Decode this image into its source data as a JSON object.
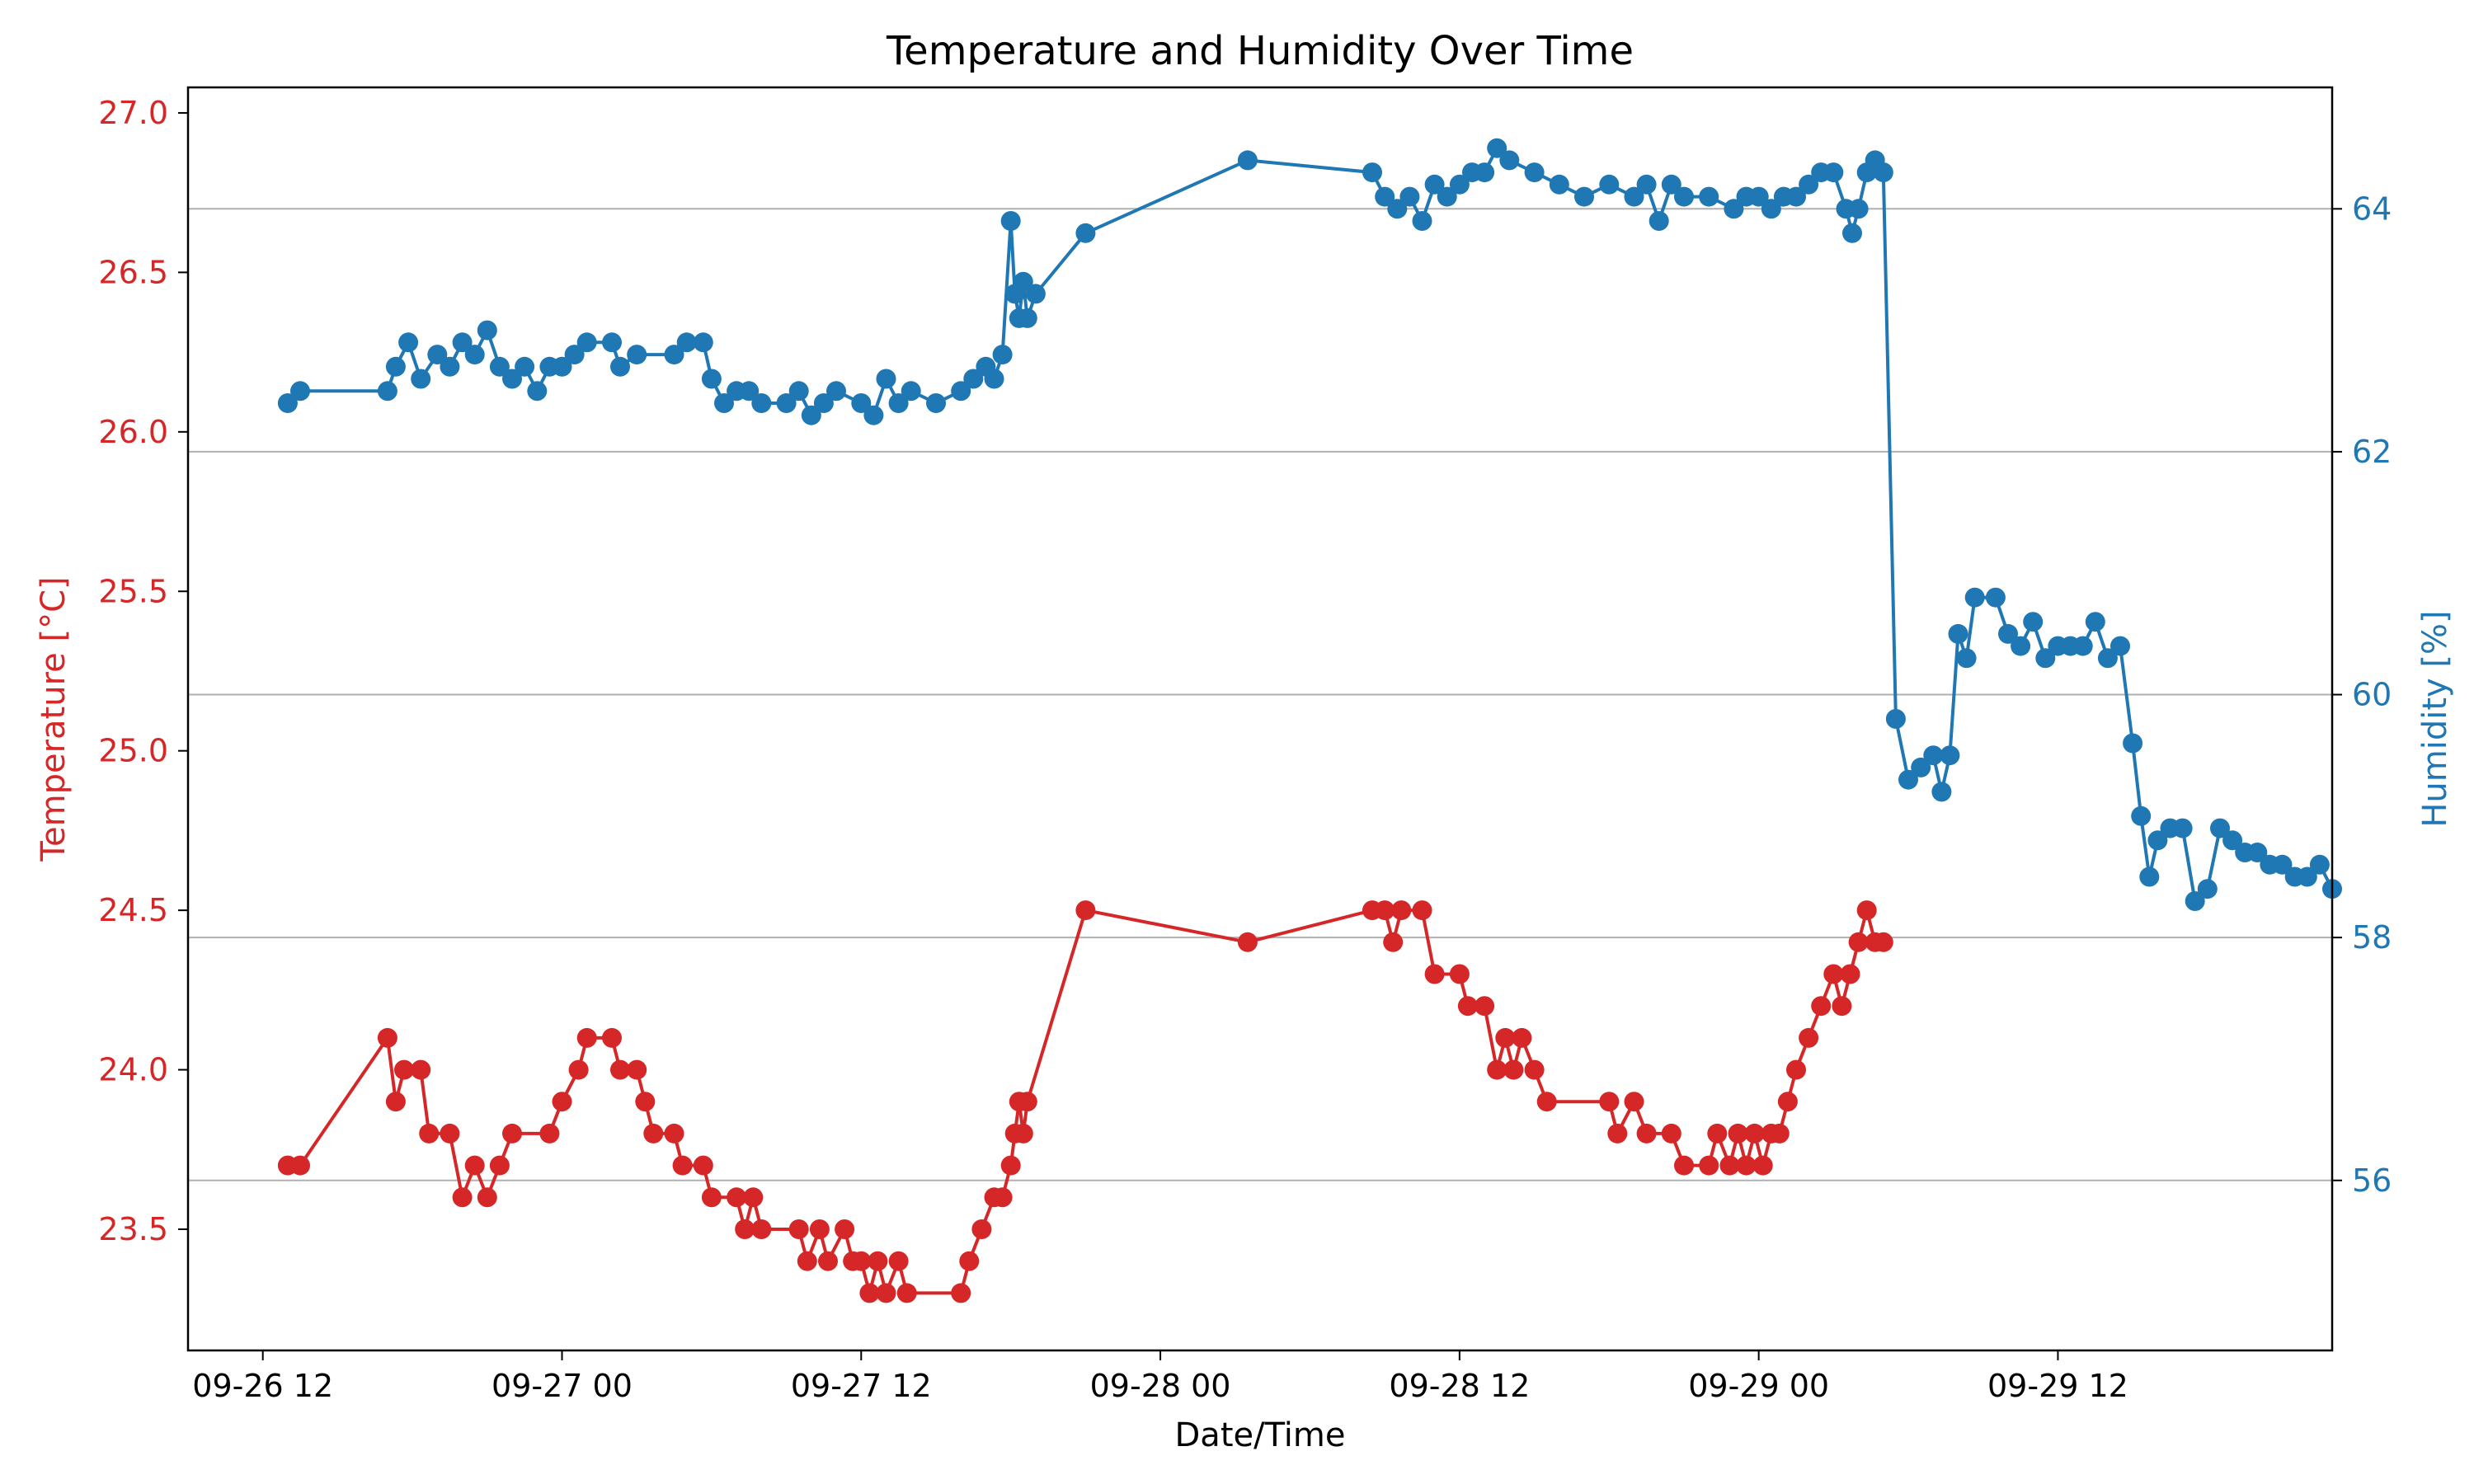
{
  "chart_data": {
    "type": "line",
    "title": "Temperature and Humidity Over Time",
    "xlabel": "Date/Time",
    "x_ticks": [
      "09-26 12",
      "09-27 00",
      "09-27 12",
      "09-28 00",
      "09-28 12",
      "09-29 00",
      "09-29 12"
    ],
    "xlim": [
      "09-26 09",
      "09-29 23"
    ],
    "ylim_left": [
      23.12,
      27.08
    ],
    "ylim_right": [
      54.6,
      65.0
    ],
    "y_left_ticks": [
      "23.5",
      "24.0",
      "24.5",
      "25.0",
      "25.5",
      "26.0",
      "26.5",
      "27.0"
    ],
    "y_right_ticks": [
      "56",
      "58",
      "60",
      "62",
      "64"
    ],
    "grid": "horizontal, right axis",
    "colors": {
      "temperature": "#d62728",
      "humidity": "#1f77b4",
      "grid": "#b0b0b0"
    },
    "series": [
      {
        "name": "Temperature [°C]",
        "axis": "left",
        "points": [
          [
            "09-26 13:00",
            23.7
          ],
          [
            "09-26 13:30",
            23.7
          ],
          [
            "09-26 17:00",
            24.1
          ],
          [
            "09-26 17:20",
            23.9
          ],
          [
            "09-26 17:40",
            24.0
          ],
          [
            "09-26 18:20",
            24.0
          ],
          [
            "09-26 18:40",
            23.8
          ],
          [
            "09-26 19:30",
            23.8
          ],
          [
            "09-26 20:00",
            23.6
          ],
          [
            "09-26 20:30",
            23.7
          ],
          [
            "09-26 21:00",
            23.6
          ],
          [
            "09-26 21:30",
            23.7
          ],
          [
            "09-26 22:00",
            23.8
          ],
          [
            "09-26 23:30",
            23.8
          ],
          [
            "09-27 00:00",
            23.9
          ],
          [
            "09-27 00:40",
            24.0
          ],
          [
            "09-27 01:00",
            24.1
          ],
          [
            "09-27 02:00",
            24.1
          ],
          [
            "09-27 02:20",
            24.0
          ],
          [
            "09-27 03:00",
            24.0
          ],
          [
            "09-27 03:20",
            23.9
          ],
          [
            "09-27 03:40",
            23.8
          ],
          [
            "09-27 04:30",
            23.8
          ],
          [
            "09-27 04:50",
            23.7
          ],
          [
            "09-27 05:40",
            23.7
          ],
          [
            "09-27 06:00",
            23.6
          ],
          [
            "09-27 07:00",
            23.6
          ],
          [
            "09-27 07:20",
            23.5
          ],
          [
            "09-27 07:40",
            23.6
          ],
          [
            "09-27 08:00",
            23.5
          ],
          [
            "09-27 09:30",
            23.5
          ],
          [
            "09-27 09:50",
            23.4
          ],
          [
            "09-27 10:20",
            23.5
          ],
          [
            "09-27 10:40",
            23.4
          ],
          [
            "09-27 11:20",
            23.5
          ],
          [
            "09-27 11:40",
            23.4
          ],
          [
            "09-27 12:00",
            23.4
          ],
          [
            "09-27 12:20",
            23.3
          ],
          [
            "09-27 12:40",
            23.4
          ],
          [
            "09-27 13:00",
            23.3
          ],
          [
            "09-27 13:30",
            23.4
          ],
          [
            "09-27 13:50",
            23.3
          ],
          [
            "09-27 16:00",
            23.3
          ],
          [
            "09-27 16:20",
            23.4
          ],
          [
            "09-27 16:50",
            23.5
          ],
          [
            "09-27 17:20",
            23.6
          ],
          [
            "09-27 17:40",
            23.6
          ],
          [
            "09-27 18:00",
            23.7
          ],
          [
            "09-27 18:10",
            23.8
          ],
          [
            "09-27 18:20",
            23.9
          ],
          [
            "09-27 18:30",
            23.8
          ],
          [
            "09-27 18:40",
            23.9
          ],
          [
            "09-27 21:00",
            24.5
          ],
          [
            "09-28 03:30",
            24.4
          ],
          [
            "09-28 08:30",
            24.5
          ],
          [
            "09-28 09:00",
            24.5
          ],
          [
            "09-28 09:20",
            24.4
          ],
          [
            "09-28 09:40",
            24.5
          ],
          [
            "09-28 10:30",
            24.5
          ],
          [
            "09-28 11:00",
            24.3
          ],
          [
            "09-28 12:00",
            24.3
          ],
          [
            "09-28 12:20",
            24.2
          ],
          [
            "09-28 13:00",
            24.2
          ],
          [
            "09-28 13:30",
            24.0
          ],
          [
            "09-28 13:50",
            24.1
          ],
          [
            "09-28 14:10",
            24.0
          ],
          [
            "09-28 14:30",
            24.1
          ],
          [
            "09-28 15:00",
            24.0
          ],
          [
            "09-28 15:30",
            23.9
          ],
          [
            "09-28 18:00",
            23.9
          ],
          [
            "09-28 18:20",
            23.8
          ],
          [
            "09-28 19:00",
            23.9
          ],
          [
            "09-28 19:30",
            23.8
          ],
          [
            "09-28 20:30",
            23.8
          ],
          [
            "09-28 21:00",
            23.7
          ],
          [
            "09-28 22:00",
            23.7
          ],
          [
            "09-28 22:20",
            23.8
          ],
          [
            "09-28 22:50",
            23.7
          ],
          [
            "09-28 23:10",
            23.8
          ],
          [
            "09-28 23:30",
            23.7
          ],
          [
            "09-28 23:50",
            23.8
          ],
          [
            "09-29 00:10",
            23.7
          ],
          [
            "09-29 00:30",
            23.8
          ],
          [
            "09-29 00:50",
            23.8
          ],
          [
            "09-29 01:10",
            23.9
          ],
          [
            "09-29 01:30",
            24.0
          ],
          [
            "09-29 02:00",
            24.1
          ],
          [
            "09-29 02:30",
            24.2
          ],
          [
            "09-29 03:00",
            24.3
          ],
          [
            "09-29 03:20",
            24.2
          ],
          [
            "09-29 03:40",
            24.3
          ],
          [
            "09-29 04:00",
            24.4
          ],
          [
            "09-29 04:20",
            24.5
          ],
          [
            "09-29 04:40",
            24.4
          ],
          [
            "09-29 05:00",
            24.4
          ]
        ]
      },
      {
        "name": "Humidity [%]",
        "axis": "right",
        "points": [
          [
            "09-26 13:00",
            62.4
          ],
          [
            "09-26 13:30",
            62.5
          ],
          [
            "09-26 17:00",
            62.5
          ],
          [
            "09-26 17:20",
            62.7
          ],
          [
            "09-26 17:50",
            62.9
          ],
          [
            "09-26 18:20",
            62.6
          ],
          [
            "09-26 19:00",
            62.8
          ],
          [
            "09-26 19:30",
            62.7
          ],
          [
            "09-26 20:00",
            62.9
          ],
          [
            "09-26 20:30",
            62.8
          ],
          [
            "09-26 21:00",
            63.0
          ],
          [
            "09-26 21:30",
            62.7
          ],
          [
            "09-26 22:00",
            62.6
          ],
          [
            "09-26 22:30",
            62.7
          ],
          [
            "09-26 23:00",
            62.5
          ],
          [
            "09-26 23:30",
            62.7
          ],
          [
            "09-27 00:00",
            62.7
          ],
          [
            "09-27 00:30",
            62.8
          ],
          [
            "09-27 01:00",
            62.9
          ],
          [
            "09-27 02:00",
            62.9
          ],
          [
            "09-27 02:20",
            62.7
          ],
          [
            "09-27 03:00",
            62.8
          ],
          [
            "09-27 04:30",
            62.8
          ],
          [
            "09-27 05:00",
            62.9
          ],
          [
            "09-27 05:40",
            62.9
          ],
          [
            "09-27 06:00",
            62.6
          ],
          [
            "09-27 06:30",
            62.4
          ],
          [
            "09-27 07:00",
            62.5
          ],
          [
            "09-27 07:30",
            62.5
          ],
          [
            "09-27 08:00",
            62.4
          ],
          [
            "09-27 09:00",
            62.4
          ],
          [
            "09-27 09:30",
            62.5
          ],
          [
            "09-27 10:00",
            62.3
          ],
          [
            "09-27 10:30",
            62.4
          ],
          [
            "09-27 11:00",
            62.5
          ],
          [
            "09-27 12:00",
            62.4
          ],
          [
            "09-27 12:30",
            62.3
          ],
          [
            "09-27 13:00",
            62.6
          ],
          [
            "09-27 13:30",
            62.4
          ],
          [
            "09-27 14:00",
            62.5
          ],
          [
            "09-27 15:00",
            62.4
          ],
          [
            "09-27 16:00",
            62.5
          ],
          [
            "09-27 16:30",
            62.6
          ],
          [
            "09-27 17:00",
            62.7
          ],
          [
            "09-27 17:20",
            62.6
          ],
          [
            "09-27 17:40",
            62.8
          ],
          [
            "09-27 18:00",
            63.9
          ],
          [
            "09-27 18:10",
            63.3
          ],
          [
            "09-27 18:20",
            63.1
          ],
          [
            "09-27 18:30",
            63.4
          ],
          [
            "09-27 18:40",
            63.1
          ],
          [
            "09-27 19:00",
            63.3
          ],
          [
            "09-27 21:00",
            63.8
          ],
          [
            "09-28 03:30",
            64.4
          ],
          [
            "09-28 08:30",
            64.3
          ],
          [
            "09-28 09:00",
            64.1
          ],
          [
            "09-28 09:30",
            64.0
          ],
          [
            "09-28 10:00",
            64.1
          ],
          [
            "09-28 10:30",
            63.9
          ],
          [
            "09-28 11:00",
            64.2
          ],
          [
            "09-28 11:30",
            64.1
          ],
          [
            "09-28 12:00",
            64.2
          ],
          [
            "09-28 12:30",
            64.3
          ],
          [
            "09-28 13:00",
            64.3
          ],
          [
            "09-28 13:30",
            64.5
          ],
          [
            "09-28 14:00",
            64.4
          ],
          [
            "09-28 15:00",
            64.3
          ],
          [
            "09-28 16:00",
            64.2
          ],
          [
            "09-28 17:00",
            64.1
          ],
          [
            "09-28 18:00",
            64.2
          ],
          [
            "09-28 19:00",
            64.1
          ],
          [
            "09-28 19:30",
            64.2
          ],
          [
            "09-28 20:00",
            63.9
          ],
          [
            "09-28 20:30",
            64.2
          ],
          [
            "09-28 21:00",
            64.1
          ],
          [
            "09-28 22:00",
            64.1
          ],
          [
            "09-28 23:00",
            64.0
          ],
          [
            "09-28 23:30",
            64.1
          ],
          [
            "09-29 00:00",
            64.1
          ],
          [
            "09-29 00:30",
            64.0
          ],
          [
            "09-29 01:00",
            64.1
          ],
          [
            "09-29 01:30",
            64.1
          ],
          [
            "09-29 02:00",
            64.2
          ],
          [
            "09-29 02:30",
            64.3
          ],
          [
            "09-29 03:00",
            64.3
          ],
          [
            "09-29 03:30",
            64.0
          ],
          [
            "09-29 03:45",
            63.8
          ],
          [
            "09-29 04:00",
            64.0
          ],
          [
            "09-29 04:20",
            64.3
          ],
          [
            "09-29 04:40",
            64.4
          ],
          [
            "09-29 05:00",
            64.3
          ],
          [
            "09-29 05:30",
            59.8
          ],
          [
            "09-29 06:00",
            59.3
          ],
          [
            "09-29 06:30",
            59.4
          ],
          [
            "09-29 07:00",
            59.5
          ],
          [
            "09-29 07:20",
            59.2
          ],
          [
            "09-29 07:40",
            59.5
          ],
          [
            "09-29 08:00",
            60.5
          ],
          [
            "09-29 08:20",
            60.3
          ],
          [
            "09-29 08:40",
            60.8
          ],
          [
            "09-29 09:30",
            60.8
          ],
          [
            "09-29 10:00",
            60.5
          ],
          [
            "09-29 10:30",
            60.4
          ],
          [
            "09-29 11:00",
            60.6
          ],
          [
            "09-29 11:30",
            60.3
          ],
          [
            "09-29 12:00",
            60.4
          ],
          [
            "09-29 12:30",
            60.4
          ],
          [
            "09-29 13:00",
            60.4
          ],
          [
            "09-29 13:30",
            60.6
          ],
          [
            "09-29 14:00",
            60.3
          ],
          [
            "09-29 14:30",
            60.4
          ],
          [
            "09-29 15:00",
            59.6
          ],
          [
            "09-29 15:20",
            59.0
          ],
          [
            "09-29 15:40",
            58.5
          ],
          [
            "09-29 16:00",
            58.8
          ],
          [
            "09-29 16:30",
            58.9
          ],
          [
            "09-29 17:00",
            58.9
          ],
          [
            "09-29 17:30",
            58.3
          ],
          [
            "09-29 18:00",
            58.4
          ],
          [
            "09-29 18:30",
            58.9
          ],
          [
            "09-29 19:00",
            58.8
          ],
          [
            "09-29 19:30",
            58.7
          ],
          [
            "09-29 20:00",
            58.7
          ],
          [
            "09-29 20:30",
            58.6
          ],
          [
            "09-29 21:00",
            58.6
          ],
          [
            "09-29 21:30",
            58.5
          ],
          [
            "09-29 22:00",
            58.5
          ],
          [
            "09-29 22:30",
            58.6
          ],
          [
            "09-29 23:00",
            58.4
          ]
        ]
      }
    ]
  }
}
